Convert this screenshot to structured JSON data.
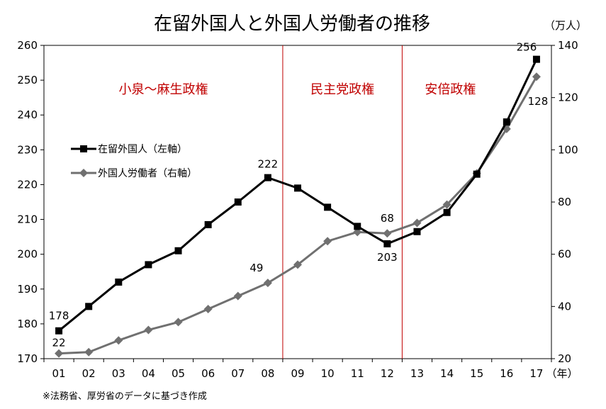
{
  "chart_data": {
    "type": "line",
    "title": "在留外国人と外国人労働者の推移",
    "categories": [
      "01",
      "02",
      "03",
      "04",
      "05",
      "06",
      "07",
      "08",
      "09",
      "10",
      "11",
      "12",
      "13",
      "14",
      "15",
      "16",
      "17"
    ],
    "x_unit": "（年）",
    "y_left": {
      "ylim": [
        170,
        260
      ],
      "ticks": [
        170,
        180,
        190,
        200,
        210,
        220,
        230,
        240,
        250,
        260
      ]
    },
    "y_right": {
      "ylim": [
        20,
        140
      ],
      "ticks": [
        20,
        40,
        60,
        80,
        100,
        120,
        140
      ],
      "unit": "（万人）"
    },
    "series": [
      {
        "name": "在留外国人（左軸）",
        "axis": "left",
        "color": "#000000",
        "marker": "square",
        "values": [
          178,
          185,
          192,
          197,
          201,
          208.5,
          215,
          222,
          219,
          213.5,
          208,
          203,
          206.5,
          212,
          223,
          238,
          256
        ]
      },
      {
        "name": "外国人労働者（右軸）",
        "axis": "right",
        "color": "#707070",
        "marker": "diamond",
        "values": [
          22,
          22.5,
          27,
          31,
          34,
          39,
          44,
          49,
          56,
          65,
          68.5,
          68,
          72,
          79,
          91,
          108,
          128
        ]
      }
    ],
    "annotations": [
      {
        "series": 0,
        "index": 0,
        "text": "178"
      },
      {
        "series": 0,
        "index": 7,
        "text": "222"
      },
      {
        "series": 0,
        "index": 11,
        "text": "203"
      },
      {
        "series": 0,
        "index": 16,
        "text": "256"
      },
      {
        "series": 1,
        "index": 0,
        "text": "22"
      },
      {
        "series": 1,
        "index": 7,
        "text": "49"
      },
      {
        "series": 1,
        "index": 11,
        "text": "68"
      },
      {
        "series": 1,
        "index": 16,
        "text": "128"
      }
    ],
    "eras": [
      {
        "label": "小泉～麻生政権"
      },
      {
        "label": "民主党政権"
      },
      {
        "label": "安倍政権"
      }
    ],
    "era_boundaries": [
      7.5,
      11.5
    ],
    "grid": false,
    "legend_placement": "left"
  },
  "source_note": "※法務省、厚労省のデータに基づき作成"
}
